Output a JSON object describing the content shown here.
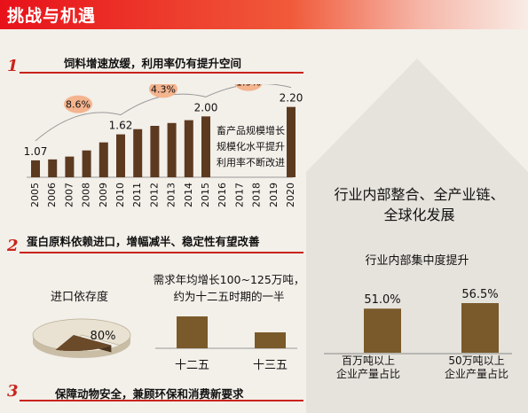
{
  "header": {
    "title": "挑战与机遇"
  },
  "sections": [
    {
      "num": "1",
      "title": "饲料增速放缓，利用率仍有提升空间"
    },
    {
      "num": "2",
      "title": "蛋白原料依赖进口，增幅减半、稳定性有望改善"
    },
    {
      "num": "3",
      "title": "保障动物安全，兼顾环保和消费新要求"
    }
  ],
  "chart_data": [
    {
      "type": "bar",
      "categories": [
        "2005",
        "2006",
        "2007",
        "2008",
        "2009",
        "2010",
        "2011",
        "2012",
        "2013",
        "2014",
        "2015",
        "2016",
        "2017",
        "2018",
        "2019",
        "2020"
      ],
      "values": [
        1.07,
        1.09,
        1.15,
        1.28,
        1.45,
        1.62,
        1.73,
        1.8,
        1.86,
        1.92,
        2.0,
        null,
        null,
        null,
        null,
        2.2
      ],
      "value_labels": [
        {
          "category": "2005",
          "text": "1.07"
        },
        {
          "category": "2010",
          "text": "1.62"
        },
        {
          "category": "2015",
          "text": "2.00"
        },
        {
          "category": "2020",
          "text": "2.20"
        }
      ],
      "growth_rates": [
        {
          "text": "8.6%",
          "from": "2005",
          "to": "2010"
        },
        {
          "text": "4.3%",
          "from": "2010",
          "to": "2015"
        },
        {
          "text": "1.9%",
          "from": "2015",
          "to": "2020"
        }
      ],
      "notes": [
        "畜产品规模增长",
        "规模化水平提升",
        "利用率不断改进"
      ],
      "color": "#5c3a20",
      "badge_color": "#f4b48e"
    },
    {
      "type": "pie",
      "title": "进口依存度",
      "values": [
        80,
        20
      ],
      "label": "80%",
      "colors": [
        "#e9e2d2",
        "#6b4a2a"
      ]
    },
    {
      "type": "bar",
      "title": "需求年均增长100~125万吨，约为十二五时期的一半",
      "title_lines": [
        "需求年均增长100~125万吨，",
        "约为十二五时期的一半"
      ],
      "categories": [
        "十二五",
        "十三五"
      ],
      "values": [
        2,
        1
      ],
      "color": "#7a5a2a"
    },
    {
      "type": "bar",
      "title": "行业内部集中度提升",
      "categories": [
        "百万吨以上企业产量占比",
        "50万吨以上企业产量占比"
      ],
      "category_lines": [
        [
          "百万吨以上",
          "企业产量占比"
        ],
        [
          "50万吨以上",
          "企业产量占比"
        ]
      ],
      "values": [
        51.0,
        56.5
      ],
      "labels": [
        "51.0%",
        "56.5%"
      ],
      "color": "#7a5a2a"
    }
  ],
  "right_panel": {
    "text_lines": [
      "行业内部整合、全产业链、",
      "全球化发展"
    ]
  }
}
